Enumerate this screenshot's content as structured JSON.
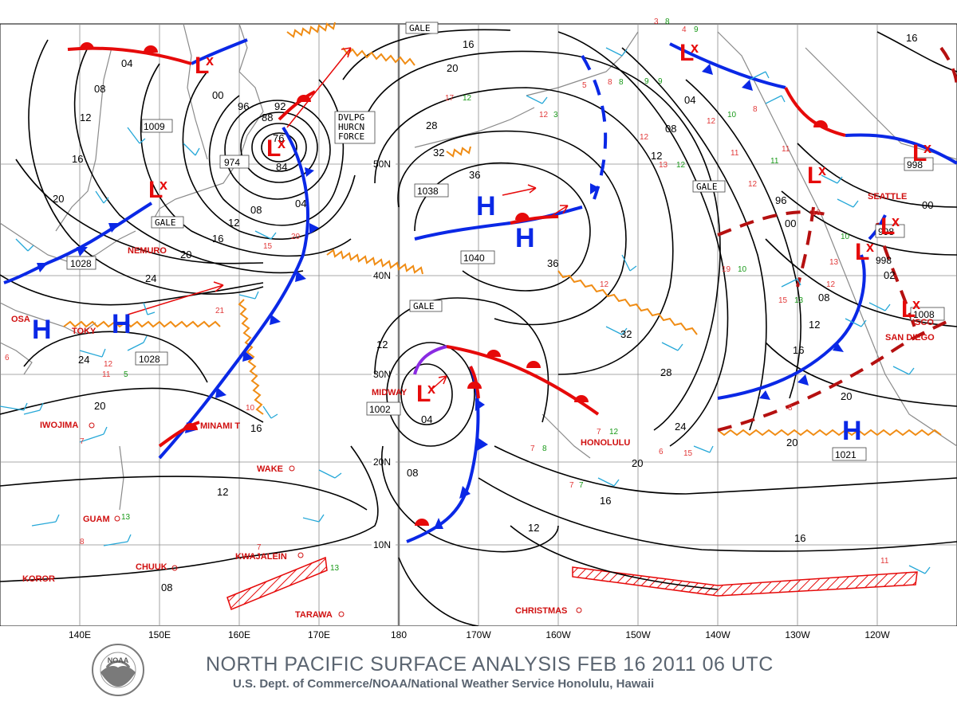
{
  "map": {
    "title": "NORTH PACIFIC SURFACE ANALYSIS FEB 16 2011 06 UTC",
    "subtitle": "U.S. Dept. of Commerce/NOAA/National Weather Service Honolulu, Hawaii",
    "logo_text": "NOAA",
    "longitudes": [
      "140E",
      "150E",
      "160E",
      "170E",
      "180",
      "170W",
      "160W",
      "150W",
      "140W",
      "130W",
      "120W"
    ],
    "latitudes": [
      "50N",
      "40N",
      "30N",
      "20N",
      "10N"
    ],
    "colors": {
      "cold_front": "#0a28e6",
      "warm_front": "#e60a0a",
      "occluded_front": "#8a2be2",
      "trough": "#b51010",
      "ridge": "#f08c14",
      "wind_barbs": "#26a8d8",
      "isobars": "#000000"
    },
    "pressure_centers": [
      {
        "type": "H",
        "label": "H",
        "value": ""
      },
      {
        "type": "H",
        "label": "H",
        "value": ""
      },
      {
        "type": "H",
        "label": "H",
        "value": "1038"
      },
      {
        "type": "H",
        "label": "H",
        "value": "1040"
      },
      {
        "type": "H",
        "label": "H",
        "value": "1021"
      },
      {
        "type": "H",
        "label": "H",
        "value": "1028"
      },
      {
        "type": "L",
        "label": "L",
        "value": "1009"
      },
      {
        "type": "L",
        "label": "L",
        "value": "974"
      },
      {
        "type": "L",
        "label": "L",
        "value": "1002"
      },
      {
        "type": "L",
        "label": "L",
        "value": "998"
      },
      {
        "type": "L",
        "label": "L",
        "value": "1008"
      }
    ],
    "warning_boxes": [
      "GALE",
      "GALE",
      "GALE",
      "GALE"
    ],
    "hurricane_force_label": [
      "DVLPG",
      "HURCN",
      "FORCE"
    ],
    "stations": [
      "NEMURO",
      "TOKY",
      "OSA",
      "IWOJIMA",
      "MINAMI T",
      "WAKE",
      "GUAM",
      "CHUUK",
      "KOROR",
      "KWAJALEIN",
      "TARAWA",
      "MIDWAY",
      "HONOLULU",
      "CHRISTMAS",
      "SEATTLE",
      "SAN DIEGO",
      "ISCO"
    ],
    "isobar_labels": [
      "04",
      "08",
      "12",
      "16",
      "20",
      "24",
      "00",
      "96",
      "92",
      "88",
      "84",
      "76",
      "28",
      "32",
      "36",
      "02"
    ]
  }
}
